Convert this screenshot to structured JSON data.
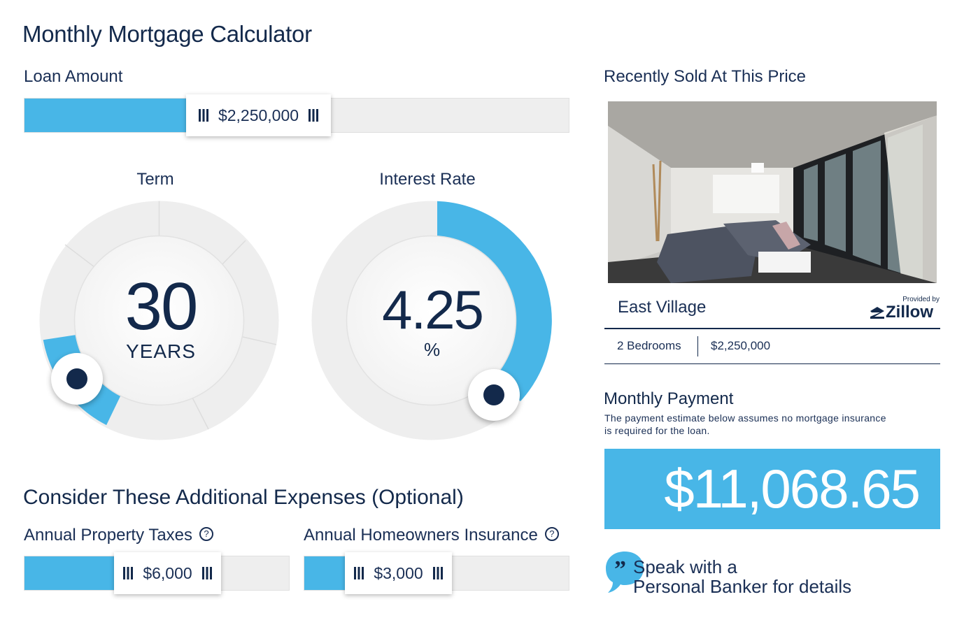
{
  "title": "Monthly Mortgage Calculator",
  "loan": {
    "label": "Loan Amount",
    "value": "$2,250,000",
    "fill_percent": 30
  },
  "term": {
    "label": "Term",
    "value": "30",
    "unit": "YEARS"
  },
  "rate": {
    "label": "Interest Rate",
    "value": "4.25",
    "unit": "%"
  },
  "expenses": {
    "heading": "Consider These Additional Expenses (Optional)",
    "taxes": {
      "label": "Annual Property Taxes",
      "value": "$6,000"
    },
    "insurance": {
      "label": "Annual Homeowners Insurance",
      "value": "$3,000"
    },
    "help_icon": "?"
  },
  "recent": {
    "heading": "Recently Sold At This Price",
    "location": "East Village",
    "provided_by": "Provided by",
    "brand": "Zillow",
    "bedrooms": "2 Bedrooms",
    "price": "$2,250,000"
  },
  "payment": {
    "heading": "Monthly Payment",
    "note_line1": "The payment estimate below assumes no mortgage insurance",
    "note_line2": "is required for the loan.",
    "amount": "$11,068.65"
  },
  "banker": {
    "line1": "Speak with a",
    "line2": "Personal Banker for details",
    "quote_icon": "quote-bubble-icon"
  },
  "colors": {
    "accent": "#48b6e7",
    "navy": "#13294b",
    "track": "#eeeeee"
  }
}
